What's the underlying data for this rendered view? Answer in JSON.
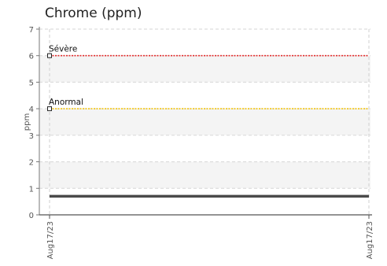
{
  "chart_data": {
    "type": "line",
    "title": "Chrome (ppm)",
    "xlabel": "",
    "ylabel": "ppm",
    "ylim": [
      0,
      7
    ],
    "yticks": [
      "0",
      "1",
      "2",
      "3",
      "4",
      "5",
      "6",
      "7"
    ],
    "xticks": [
      "Aug17/23",
      "Aug17/23"
    ],
    "grid": true,
    "series": [
      {
        "values": [
          0.7,
          0.7
        ],
        "color": "#4a4a4a"
      }
    ],
    "thresholds": [
      {
        "label": "Sévère",
        "value": 6,
        "color": "#e53030"
      },
      {
        "label": "Anormal",
        "value": 4,
        "color": "#f2c40f"
      }
    ]
  }
}
